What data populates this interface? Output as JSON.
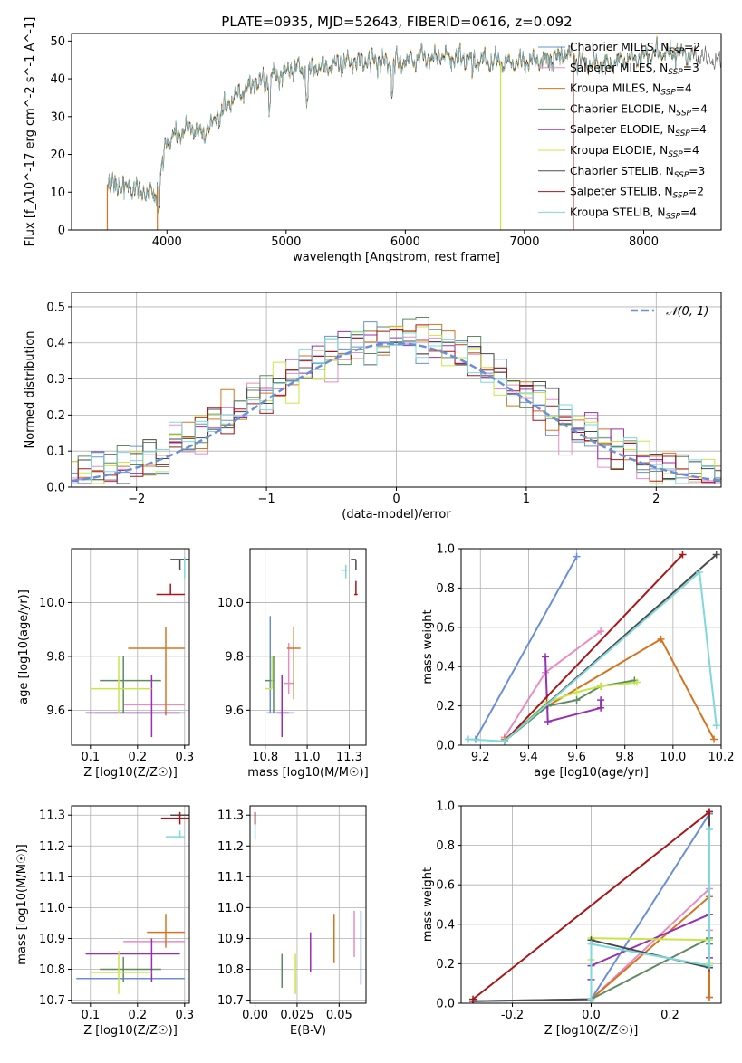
{
  "figure_title": "PLATE=0935, MJD=52643, FIBERID=0616, z=0.092",
  "colors": {
    "Chabrier MILES": "#6a8fd8",
    "Salpeter MILES": "#e88dc0",
    "Kroupa MILES": "#d5741f",
    "Chabrier ELODIE": "#5e8a62",
    "Salpeter ELODIE": "#9630b2",
    "Kroupa ELODIE": "#c8e644",
    "Chabrier STELIB": "#4a4a4a",
    "Salpeter STELIB": "#aa1518",
    "Kroupa STELIB": "#7ed8dc"
  },
  "chart_data": [
    {
      "id": "spectrum",
      "type": "line",
      "xlabel": "wavelength [Angstrom, rest frame]",
      "ylabel": "Flux [f_λ10^-17 erg cm^-2 s^-1 A^-1]",
      "xlim": [
        3200,
        8650
      ],
      "ylim": [
        0,
        52
      ],
      "xticks": [
        4000,
        5000,
        6000,
        7000,
        8000
      ],
      "yticks": [
        0,
        10,
        20,
        30,
        40,
        50
      ],
      "grid": false,
      "legend_position": "top-right",
      "legend": [
        {
          "name": "Chabrier MILES",
          "nssp": "2"
        },
        {
          "name": "Salpeter MILES",
          "nssp": "3"
        },
        {
          "name": "Kroupa MILES",
          "nssp": "4"
        },
        {
          "name": "Chabrier ELODIE",
          "nssp": "4"
        },
        {
          "name": "Salpeter ELODIE",
          "nssp": "4"
        },
        {
          "name": "Kroupa ELODIE",
          "nssp": "4"
        },
        {
          "name": "Chabrier STELIB",
          "nssp": "3"
        },
        {
          "name": "Salpeter STELIB",
          "nssp": "2"
        },
        {
          "name": "Kroupa STELIB",
          "nssp": "4"
        }
      ],
      "continuum": {
        "x": [
          3500,
          3700,
          3900,
          3950,
          4000,
          4200,
          4300,
          4500,
          4700,
          5000,
          5300,
          5600,
          5900,
          6200,
          6600,
          7000,
          7300,
          7420
        ],
        "y": [
          12,
          11,
          9,
          15,
          24,
          27,
          25,
          33,
          38,
          42,
          43,
          45,
          44,
          46,
          45,
          44,
          46,
          47
        ]
      },
      "model_drops": [
        {
          "series": "Kroupa MILES",
          "x": 3500
        },
        {
          "series": "Kroupa MILES",
          "x": 3920
        },
        {
          "series": "Kroupa ELODIE",
          "x": 6800
        },
        {
          "series": "Salpeter STELIB",
          "x": 7410
        }
      ]
    },
    {
      "id": "residual_hist",
      "type": "histogram",
      "xlabel": "(data-model)/error",
      "ylabel": "Normed distribution",
      "xlim": [
        -2.5,
        2.5
      ],
      "ylim": [
        0,
        0.54
      ],
      "xticks": [
        -2,
        -1,
        0,
        1,
        2
      ],
      "yticks": [
        0.0,
        0.1,
        0.2,
        0.3,
        0.4,
        0.5
      ],
      "grid": true,
      "legend_position": "top-right",
      "reference_label": "𝒩(0, 1)",
      "bin_width": 0.1
    },
    {
      "id": "age_vs_Z",
      "type": "scatter",
      "xlabel": "Z [log10(Z/Z☉)]",
      "ylabel": "age [log10(age/yr)]",
      "xlim": [
        0.06,
        0.31
      ],
      "ylim": [
        9.47,
        10.2
      ],
      "xticks": [
        0.1,
        0.2,
        0.3
      ],
      "yticks": [
        9.6,
        9.8,
        10.0
      ],
      "grid": true,
      "points": [
        {
          "series": "Chabrier MILES",
          "x": 0.2,
          "y": 9.59,
          "xerr": [
            0.09,
            0.1
          ],
          "yerr": [
            0,
            0
          ]
        },
        {
          "series": "Salpeter MILES",
          "x": 0.25,
          "y": 9.62,
          "xerr": [
            0.08,
            0.05
          ],
          "yerr": [
            0,
            0
          ]
        },
        {
          "series": "Kroupa MILES",
          "x": 0.26,
          "y": 9.83,
          "xerr": [
            0.08,
            0.04
          ],
          "yerr": [
            0.25,
            0.08
          ]
        },
        {
          "series": "Chabrier ELODIE",
          "x": 0.17,
          "y": 9.71,
          "xerr": [
            0.05,
            0.08
          ],
          "yerr": [
            0.12,
            0.09
          ]
        },
        {
          "series": "Salpeter ELODIE",
          "x": 0.23,
          "y": 9.59,
          "xerr": [
            0.14,
            0.06
          ],
          "yerr": [
            0.09,
            0.14
          ]
        },
        {
          "series": "Kroupa ELODIE",
          "x": 0.16,
          "y": 9.68,
          "xerr": [
            0.06,
            0.07
          ],
          "yerr": [
            0.09,
            0.12
          ]
        },
        {
          "series": "Chabrier STELIB",
          "x": 0.29,
          "y": 10.16,
          "xerr": [
            0.02,
            0.02
          ],
          "yerr": [
            0.04,
            0.0
          ]
        },
        {
          "series": "Salpeter STELIB",
          "x": 0.27,
          "y": 10.03,
          "xerr": [
            0.03,
            0.03
          ],
          "yerr": [
            0.0,
            0.04
          ]
        },
        {
          "series": "Kroupa STELIB",
          "x": 0.3,
          "y": 10.12,
          "xerr": [
            0.0,
            0.0
          ],
          "yerr": [
            0.03,
            0.05
          ]
        }
      ]
    },
    {
      "id": "age_vs_mass",
      "type": "scatter",
      "xlabel": "mass [log10(M/M☉)]",
      "ylabel": "",
      "xlim": [
        10.66,
        11.35
      ],
      "ylim": [
        9.47,
        10.2
      ],
      "xticks": [
        10.75,
        11.0,
        11.25
      ],
      "yticks": [
        9.6,
        9.8,
        10.0
      ],
      "grid": true,
      "points": [
        {
          "series": "Chabrier MILES",
          "x": 10.78,
          "y": 9.59,
          "xerr": [
            0.02,
            0.14
          ],
          "yerr": [
            0.0,
            0.36
          ]
        },
        {
          "series": "Salpeter MILES",
          "x": 10.89,
          "y": 9.7,
          "xerr": [
            0.03,
            0.03
          ],
          "yerr": [
            0.04,
            0.15
          ]
        },
        {
          "series": "Kroupa MILES",
          "x": 10.92,
          "y": 9.83,
          "xerr": [
            0.04,
            0.04
          ],
          "yerr": [
            0.19,
            0.08
          ]
        },
        {
          "series": "Chabrier ELODIE",
          "x": 10.8,
          "y": 9.71,
          "xerr": [
            0.05,
            0.0
          ],
          "yerr": [
            0.12,
            0.09
          ]
        },
        {
          "series": "Salpeter ELODIE",
          "x": 10.85,
          "y": 9.59,
          "xerr": [
            0.03,
            0.04
          ],
          "yerr": [
            0.09,
            0.14
          ]
        },
        {
          "series": "Kroupa ELODIE",
          "x": 10.79,
          "y": 9.68,
          "xerr": [
            0.04,
            0.0
          ],
          "yerr": [
            0.0,
            0.12
          ]
        },
        {
          "series": "Chabrier STELIB",
          "x": 11.29,
          "y": 10.16,
          "xerr": [
            0.03,
            0.0
          ],
          "yerr": [
            0.04,
            0.0
          ]
        },
        {
          "series": "Salpeter STELIB",
          "x": 11.29,
          "y": 10.03,
          "xerr": [
            0.01,
            0.01
          ],
          "yerr": [
            0.0,
            0.05
          ]
        },
        {
          "series": "Kroupa STELIB",
          "x": 11.23,
          "y": 10.12,
          "xerr": [
            0.03,
            0.01
          ],
          "yerr": [
            0.03,
            0.02
          ]
        }
      ]
    },
    {
      "id": "massweight_vs_age",
      "type": "line",
      "xlabel": "age [log10(age/yr)]",
      "ylabel": "mass weight",
      "xlim": [
        9.12,
        10.2
      ],
      "ylim": [
        0.0,
        1.0
      ],
      "xticks": [
        9.2,
        9.4,
        9.6,
        9.8,
        10.0,
        10.2
      ],
      "yticks": [
        0.0,
        0.2,
        0.4,
        0.6,
        0.8,
        1.0
      ],
      "grid": true,
      "series": [
        {
          "name": "Chabrier MILES",
          "x": [
            9.18,
            9.6
          ],
          "y": [
            0.03,
            0.96
          ]
        },
        {
          "name": "Salpeter MILES",
          "x": [
            9.3,
            9.47,
            9.7
          ],
          "y": [
            0.04,
            0.37,
            0.58
          ]
        },
        {
          "name": "Kroupa MILES",
          "x": [
            9.3,
            9.48,
            9.95,
            10.17
          ],
          "y": [
            0.03,
            0.2,
            0.54,
            0.03
          ]
        },
        {
          "name": "Chabrier ELODIE",
          "x": [
            9.3,
            9.48,
            9.6,
            9.7,
            9.84
          ],
          "y": [
            0.02,
            0.2,
            0.23,
            0.3,
            0.33
          ]
        },
        {
          "name": "Salpeter ELODIE",
          "x": [
            9.47,
            9.48,
            9.7,
            9.7
          ],
          "y": [
            0.45,
            0.12,
            0.19,
            0.23
          ]
        },
        {
          "name": "Kroupa ELODIE",
          "x": [
            9.3,
            9.48,
            9.6,
            9.7,
            9.85
          ],
          "y": [
            0.02,
            0.22,
            0.27,
            0.3,
            0.32
          ]
        },
        {
          "name": "Chabrier STELIB",
          "x": [
            9.3,
            10.18
          ],
          "y": [
            0.02,
            0.97
          ]
        },
        {
          "name": "Salpeter STELIB",
          "x": [
            9.3,
            10.04
          ],
          "y": [
            0.02,
            0.97
          ]
        },
        {
          "name": "Kroupa STELIB",
          "x": [
            9.15,
            9.3,
            10.11,
            10.18
          ],
          "y": [
            0.03,
            0.02,
            0.88,
            0.1
          ]
        }
      ]
    },
    {
      "id": "mass_vs_Z",
      "type": "scatter",
      "xlabel": "Z [log10(Z/Z☉)]",
      "ylabel": "mass [log10(M/M☉)]",
      "xlim": [
        0.06,
        0.31
      ],
      "ylim": [
        10.69,
        11.33
      ],
      "xticks": [
        0.1,
        0.2,
        0.3
      ],
      "yticks": [
        10.7,
        10.8,
        10.9,
        11.0,
        11.1,
        11.2,
        11.3
      ],
      "grid": true,
      "points": [
        {
          "series": "Chabrier MILES",
          "x": 0.17,
          "y": 10.77,
          "xerr": [
            0.1,
            0.13
          ],
          "yerr": [
            0.0,
            0.0
          ]
        },
        {
          "series": "Salpeter MILES",
          "x": 0.26,
          "y": 10.89,
          "xerr": [
            0.09,
            0.04
          ],
          "yerr": [
            0.0,
            0.0
          ]
        },
        {
          "series": "Kroupa MILES",
          "x": 0.26,
          "y": 10.92,
          "xerr": [
            0.04,
            0.04
          ],
          "yerr": [
            0.05,
            0.06
          ]
        },
        {
          "series": "Chabrier ELODIE",
          "x": 0.17,
          "y": 10.8,
          "xerr": [
            0.05,
            0.08
          ],
          "yerr": [
            0.04,
            0.04
          ]
        },
        {
          "series": "Salpeter ELODIE",
          "x": 0.23,
          "y": 10.85,
          "xerr": [
            0.14,
            0.06
          ],
          "yerr": [
            0.09,
            0.05
          ]
        },
        {
          "series": "Kroupa ELODIE",
          "x": 0.16,
          "y": 10.79,
          "xerr": [
            0.06,
            0.07
          ],
          "yerr": [
            0.07,
            0.07
          ]
        },
        {
          "series": "Chabrier STELIB",
          "x": 0.29,
          "y": 11.3,
          "xerr": [
            0.02,
            0.02
          ],
          "yerr": [
            0.0,
            0.0
          ]
        },
        {
          "series": "Salpeter STELIB",
          "x": 0.29,
          "y": 11.29,
          "xerr": [
            0.04,
            0.02
          ],
          "yerr": [
            0.02,
            0.02
          ]
        },
        {
          "series": "Kroupa STELIB",
          "x": 0.29,
          "y": 11.23,
          "xerr": [
            0.03,
            0.01
          ],
          "yerr": [
            0.0,
            0.02
          ]
        }
      ]
    },
    {
      "id": "mass_vs_ebv",
      "type": "scatter",
      "xlabel": "E(B-V)",
      "ylabel": "",
      "xlim": [
        -0.003,
        0.066
      ],
      "ylim": [
        10.69,
        11.33
      ],
      "xticks": [
        0.0,
        0.025,
        0.05
      ],
      "ytick_labels": [
        "10.7",
        "10.8",
        "10.9",
        "11.0",
        "11.1",
        "11.2",
        "11.3"
      ],
      "yticks": [
        10.7,
        10.8,
        10.9,
        11.0,
        11.1,
        11.2,
        11.3
      ],
      "grid": true,
      "points": [
        {
          "series": "Chabrier MILES",
          "x": 0.063,
          "y": 10.87,
          "yerr": [
            0.12,
            0.12
          ]
        },
        {
          "series": "Salpeter MILES",
          "x": 0.059,
          "y": 10.91,
          "yerr": [
            0.07,
            0.08
          ]
        },
        {
          "series": "Kroupa MILES",
          "x": 0.047,
          "y": 10.9,
          "yerr": [
            0.08,
            0.08
          ]
        },
        {
          "series": "Chabrier ELODIE",
          "x": 0.016,
          "y": 10.79,
          "yerr": [
            0.05,
            0.06
          ]
        },
        {
          "series": "Salpeter ELODIE",
          "x": 0.033,
          "y": 10.85,
          "yerr": [
            0.06,
            0.07
          ]
        },
        {
          "series": "Kroupa ELODIE",
          "x": 0.024,
          "y": 10.79,
          "yerr": [
            0.07,
            0.06
          ]
        },
        {
          "series": "Chabrier STELIB",
          "x": 0.0,
          "y": 11.29,
          "yerr": [
            0.02,
            0.02
          ]
        },
        {
          "series": "Salpeter STELIB",
          "x": 0.0,
          "y": 11.29,
          "yerr": [
            0.02,
            0.02
          ]
        },
        {
          "series": "Kroupa STELIB",
          "x": 0.0,
          "y": 11.25,
          "yerr": [
            0.03,
            0.02
          ]
        }
      ]
    },
    {
      "id": "massweight_vs_Z",
      "type": "line",
      "xlabel": "Z [log10(Z/Z☉)]",
      "ylabel": "mass weight",
      "xlim": [
        -0.33,
        0.33
      ],
      "ylim": [
        0.0,
        1.0
      ],
      "xticks": [
        -0.2,
        0.0,
        0.2
      ],
      "yticks": [
        0.0,
        0.2,
        0.4,
        0.6,
        0.8,
        1.0
      ],
      "grid": true,
      "series": [
        {
          "name": "Chabrier MILES",
          "x": [
            -0.3,
            0.0,
            0.3,
            0.3
          ],
          "y": [
            0.01,
            0.02,
            0.96,
            0.03
          ]
        },
        {
          "name": "Salpeter MILES",
          "x": [
            0.0,
            0.3,
            0.3
          ],
          "y": [
            0.02,
            0.58,
            0.37
          ]
        },
        {
          "name": "Kroupa MILES",
          "x": [
            0.0,
            0.3,
            0.3,
            0.3
          ],
          "y": [
            0.02,
            0.54,
            0.2,
            0.03
          ]
        },
        {
          "name": "Chabrier ELODIE",
          "x": [
            0.0,
            0.3,
            0.3
          ],
          "y": [
            0.02,
            0.33,
            0.3
          ]
        },
        {
          "name": "Salpeter ELODIE",
          "x": [
            0.0,
            0.0,
            0.3,
            0.3
          ],
          "y": [
            0.12,
            0.19,
            0.45,
            0.23
          ]
        },
        {
          "name": "Kroupa ELODIE",
          "x": [
            0.0,
            0.0,
            0.3,
            0.3
          ],
          "y": [
            0.22,
            0.33,
            0.32,
            0.2
          ]
        },
        {
          "name": "Chabrier STELIB",
          "x": [
            -0.3,
            0.0,
            0.0,
            0.3,
            0.3
          ],
          "y": [
            0.01,
            0.02,
            0.32,
            0.18,
            0.97
          ]
        },
        {
          "name": "Salpeter STELIB",
          "x": [
            -0.3,
            0.3
          ],
          "y": [
            0.02,
            0.97
          ]
        },
        {
          "name": "Kroupa STELIB",
          "x": [
            0.0,
            0.0,
            0.3,
            0.3
          ],
          "y": [
            0.02,
            0.3,
            0.19,
            0.88
          ]
        }
      ]
    }
  ]
}
